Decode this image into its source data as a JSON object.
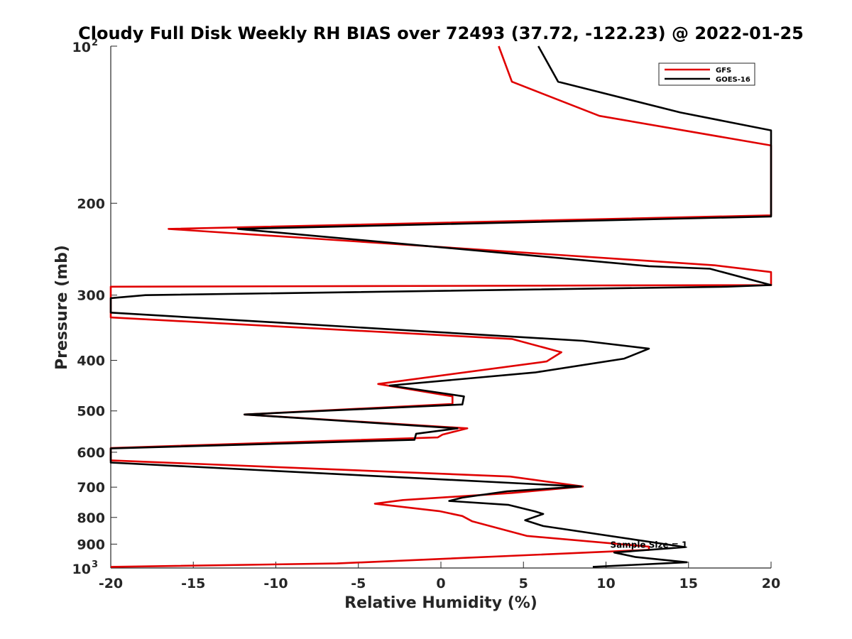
{
  "chart_data": {
    "type": "line",
    "title": "Cloudy Full Disk Weekly RH BIAS over 72493 (37.72, -122.23) @ 2022-01-25",
    "xlabel": "Relative Humidity (%)",
    "ylabel": "Pressure (mb)",
    "xlim": [
      -20,
      20
    ],
    "ylim": [
      100,
      1000
    ],
    "y_scale": "log",
    "y_reversed": true,
    "grid": false,
    "legend_position": "top-right",
    "x_ticks": [
      -20,
      -15,
      -10,
      -5,
      0,
      5,
      10,
      15,
      20
    ],
    "x_tick_labels": [
      "-20",
      "-15",
      "-10",
      "-5",
      "0",
      "5",
      "10",
      "15",
      "20"
    ],
    "y_ticks": [
      {
        "value": 100,
        "base": "10",
        "exp": "2"
      },
      {
        "value": 200,
        "label": "200"
      },
      {
        "value": 300,
        "label": "300"
      },
      {
        "value": 400,
        "label": "400"
      },
      {
        "value": 500,
        "label": "500"
      },
      {
        "value": 600,
        "label": "600"
      },
      {
        "value": 700,
        "label": "700"
      },
      {
        "value": 800,
        "label": "800"
      },
      {
        "value": 900,
        "label": "900"
      },
      {
        "value": 1000,
        "base": "10",
        "exp": "3"
      }
    ],
    "series": [
      {
        "name": "GFS",
        "color": "#e00000",
        "x": [
          3.5,
          4.3,
          9.6,
          20,
          20,
          -16.5,
          16.6,
          20,
          20,
          -20,
          -20,
          4.3,
          7.3,
          6.4,
          -3.8,
          0.7,
          0.7,
          -11.9,
          1.6,
          0.1,
          -0.2,
          -20,
          -20,
          4.2,
          8.6,
          4.3,
          -2.3,
          -4.0,
          -0.1,
          1.3,
          1.9,
          5.2,
          12.6,
          12.6,
          -6.3,
          -20
        ],
        "y": [
          100,
          117,
          136,
          155,
          211,
          224,
          263,
          271,
          287,
          289,
          331,
          364,
          386,
          402,
          444,
          469,
          485,
          508,
          540,
          555,
          562,
          589,
          622,
          668,
          698,
          718,
          741,
          753,
          778,
          795,
          814,
          868,
          910,
          923,
          980,
          995
        ]
      },
      {
        "name": "GOES-16",
        "color": "#000000",
        "x": [
          5.9,
          7.1,
          14.5,
          20,
          20,
          -12.3,
          12.6,
          16.3,
          20,
          17.3,
          -17.9,
          -20,
          -20,
          8.6,
          12.6,
          11.1,
          5.7,
          -3.1,
          1.4,
          1.3,
          -11.9,
          1.0,
          -1.5,
          -1.6,
          -20,
          -20,
          8.5,
          4.0,
          1.3,
          0.5,
          4.1,
          5.7,
          6.2,
          5.1,
          6.2,
          14.8,
          10.5,
          11.8,
          14.9,
          9.2
        ],
        "y": [
          100,
          117,
          134,
          145,
          212,
          224,
          264,
          267,
          287,
          289,
          300,
          304,
          324,
          367,
          380,
          397,
          422,
          447,
          469,
          486,
          508,
          540,
          553,
          568,
          590,
          628,
          698,
          713,
          733,
          744,
          757,
          779,
          788,
          810,
          831,
          912,
          934,
          953,
          975,
          995
        ]
      }
    ],
    "annotations": [
      {
        "text": "Sample Size = 1",
        "x": 12.6,
        "y": 900
      }
    ]
  }
}
